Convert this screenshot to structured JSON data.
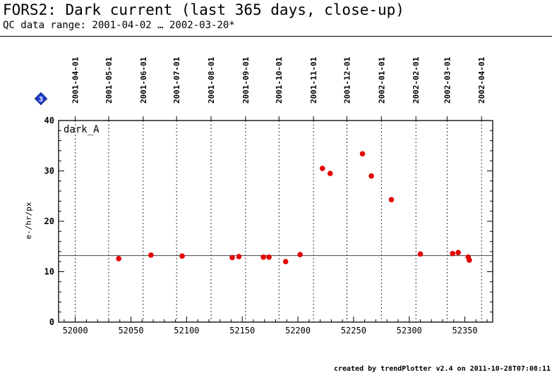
{
  "header": {
    "title": "FORS2: Dark current (last 365 days, close-up)",
    "subtitle": "QC data range: 2001-04-02 … 2002-03-20*"
  },
  "footer": {
    "text": "created by trendPlotter v2.4 on 2011-10-28T07:08:11"
  },
  "badge": {
    "label": "3",
    "color": "#1f3fd0"
  },
  "chart_data": {
    "type": "scatter",
    "panel_label": "dark_A",
    "xlabel": "",
    "ylabel": "e-/hr/px",
    "xlim": [
      51985,
      52375
    ],
    "ylim": [
      0,
      40
    ],
    "x_ticks": [
      52000,
      52050,
      52100,
      52150,
      52200,
      52250,
      52300,
      52350
    ],
    "y_ticks": [
      0,
      10,
      20,
      30,
      40
    ],
    "grid": "vertical dotted lines at month boundaries",
    "reference_line": 13.2,
    "marker_color": "#e60000",
    "date_ticks": [
      {
        "mjd": 52000,
        "label": "2001-04-01"
      },
      {
        "mjd": 52030,
        "label": "2001-05-01"
      },
      {
        "mjd": 52061,
        "label": "2001-06-01"
      },
      {
        "mjd": 52091,
        "label": "2001-07-01"
      },
      {
        "mjd": 52122,
        "label": "2001-08-01"
      },
      {
        "mjd": 52153,
        "label": "2001-09-01"
      },
      {
        "mjd": 52183,
        "label": "2001-10-01"
      },
      {
        "mjd": 52214,
        "label": "2001-11-01"
      },
      {
        "mjd": 52244,
        "label": "2001-12-01"
      },
      {
        "mjd": 52275,
        "label": "2002-01-01"
      },
      {
        "mjd": 52306,
        "label": "2002-02-01"
      },
      {
        "mjd": 52334,
        "label": "2002-03-01"
      },
      {
        "mjd": 52365,
        "label": "2002-04-01"
      }
    ],
    "points": [
      {
        "x": 52039,
        "y": 12.6
      },
      {
        "x": 52068,
        "y": 13.3
      },
      {
        "x": 52096,
        "y": 13.1
      },
      {
        "x": 52141,
        "y": 12.8
      },
      {
        "x": 52147,
        "y": 13.0
      },
      {
        "x": 52169,
        "y": 12.9
      },
      {
        "x": 52174,
        "y": 12.9
      },
      {
        "x": 52189,
        "y": 12.0
      },
      {
        "x": 52202,
        "y": 13.4
      },
      {
        "x": 52222,
        "y": 30.5
      },
      {
        "x": 52229,
        "y": 29.5
      },
      {
        "x": 52258,
        "y": 33.4
      },
      {
        "x": 52266,
        "y": 29.0
      },
      {
        "x": 52284,
        "y": 24.3
      },
      {
        "x": 52310,
        "y": 13.5
      },
      {
        "x": 52339,
        "y": 13.6
      },
      {
        "x": 52344,
        "y": 13.8
      },
      {
        "x": 52353,
        "y": 12.9
      },
      {
        "x": 52354,
        "y": 12.3
      }
    ]
  }
}
